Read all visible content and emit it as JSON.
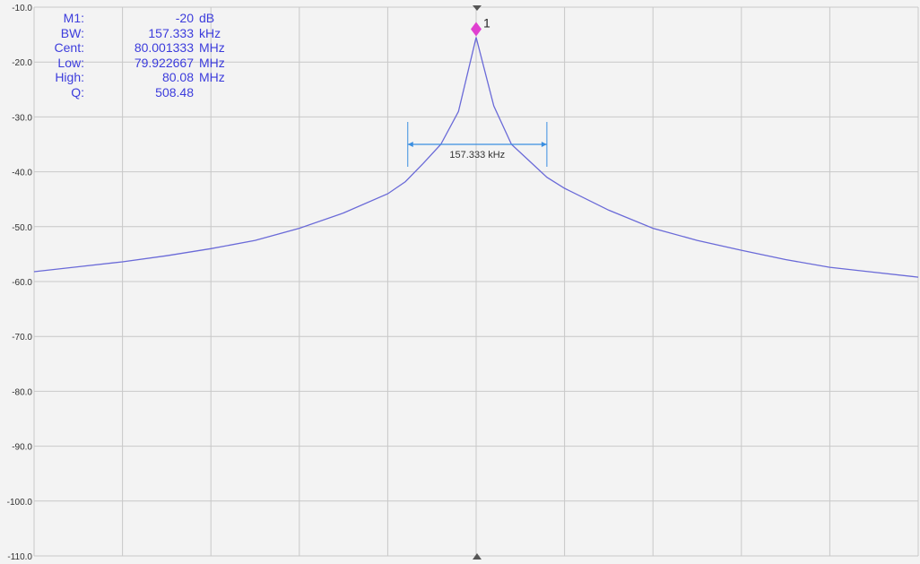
{
  "marker_readout": [
    {
      "key": "M1:",
      "value": "-20",
      "unit": "dB"
    },
    {
      "key": "BW:",
      "value": "157.333",
      "unit": "kHz"
    },
    {
      "key": "Cent:",
      "value": "80.001333",
      "unit": "MHz"
    },
    {
      "key": "Low:",
      "value": "79.922667",
      "unit": "MHz"
    },
    {
      "key": "High:",
      "value": "80.08",
      "unit": "MHz"
    },
    {
      "key": "Q:",
      "value": "508.48",
      "unit": ""
    }
  ],
  "marker": {
    "label": "1",
    "color": "#e040d0"
  },
  "bandwidth_label": "157.333 kHz",
  "colors": {
    "trace": "#6a6ad8",
    "readout": "#3c3cdc",
    "bandwidth": "#3a8ee0",
    "grid": "#c8c8c8",
    "background": "#f3f3f3"
  },
  "chart_data": {
    "type": "line",
    "title": "",
    "xlabel": "",
    "ylabel": "",
    "ylim": [
      -110,
      -10
    ],
    "y_ticks": [
      "-10.0",
      "-20.0",
      "-30.0",
      "-40.0",
      "-50.0",
      "-60.0",
      "-70.0",
      "-80.0",
      "-90.0",
      "-100.0",
      "-110.0"
    ],
    "x_unit": "MHz",
    "grid": true,
    "series": [
      {
        "x": [
          79.5,
          79.55,
          79.6,
          79.65,
          79.7,
          79.75,
          79.8,
          79.85,
          79.9,
          79.92,
          79.94,
          79.96,
          79.98,
          80.0,
          80.02,
          80.04,
          80.06,
          80.08,
          80.1,
          80.15,
          80.2,
          80.25,
          80.3,
          80.35,
          80.4,
          80.45,
          80.5
        ],
        "y": [
          -58.2,
          -57.3,
          -56.4,
          -55.3,
          -54.0,
          -52.5,
          -50.3,
          -47.5,
          -44.0,
          -41.8,
          -38.5,
          -35.0,
          -29.0,
          -15.5,
          -28.0,
          -35.0,
          -38.0,
          -41.0,
          -43.0,
          -47.0,
          -50.3,
          -52.5,
          -54.3,
          -56.0,
          -57.4,
          -58.3,
          -59.2
        ]
      }
    ],
    "marker_point": {
      "x": 80.0,
      "y": -14.0
    },
    "bandwidth": {
      "x_low": 79.922667,
      "x_high": 80.08,
      "level": -35.0
    }
  }
}
